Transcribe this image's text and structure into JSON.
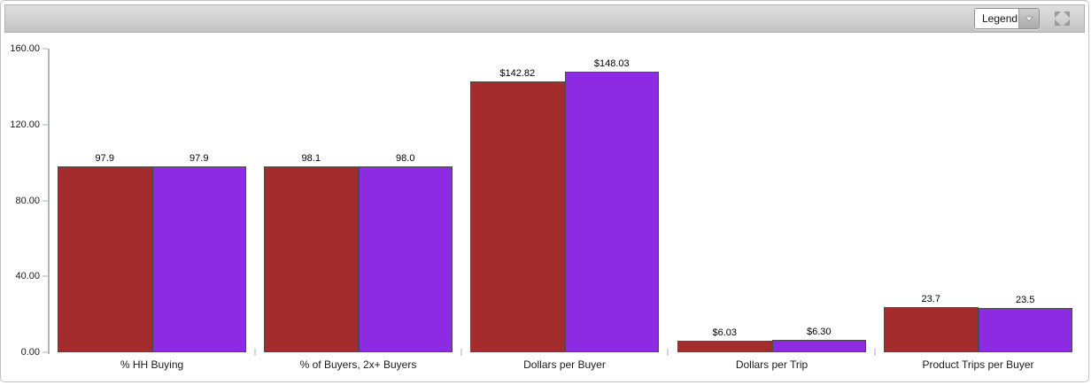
{
  "toolbar": {
    "legend_dropdown": {
      "label": "Legend"
    }
  },
  "chart_data": {
    "type": "bar",
    "title": "",
    "categories": [
      "% HH Buying",
      "% of Buyers, 2x+ Buyers",
      "Dollars per Buyer",
      "Dollars per Trip",
      "Product Trips per Buyer"
    ],
    "series": [
      {
        "name": "red",
        "color": "#a52c2c",
        "values": [
          97.9,
          98.1,
          142.82,
          6.03,
          23.7
        ],
        "labels": [
          "97.9",
          "98.1",
          "$142.82",
          "$6.03",
          "23.7"
        ]
      },
      {
        "name": "purple",
        "color": "#8c2be2",
        "values": [
          97.9,
          98.0,
          148.03,
          6.3,
          23.5
        ],
        "labels": [
          "97.9",
          "98.0",
          "$148.03",
          "$6.30",
          "23.5"
        ]
      }
    ],
    "y_axis": {
      "tick_labels": [
        "160.00",
        "120.00",
        "80.00",
        "40.00",
        "0.00"
      ],
      "min": 0,
      "max": 160
    },
    "xlabel": "",
    "ylabel": "",
    "grid": false,
    "legend_position": "collapsed-toolbar-dropdown"
  }
}
